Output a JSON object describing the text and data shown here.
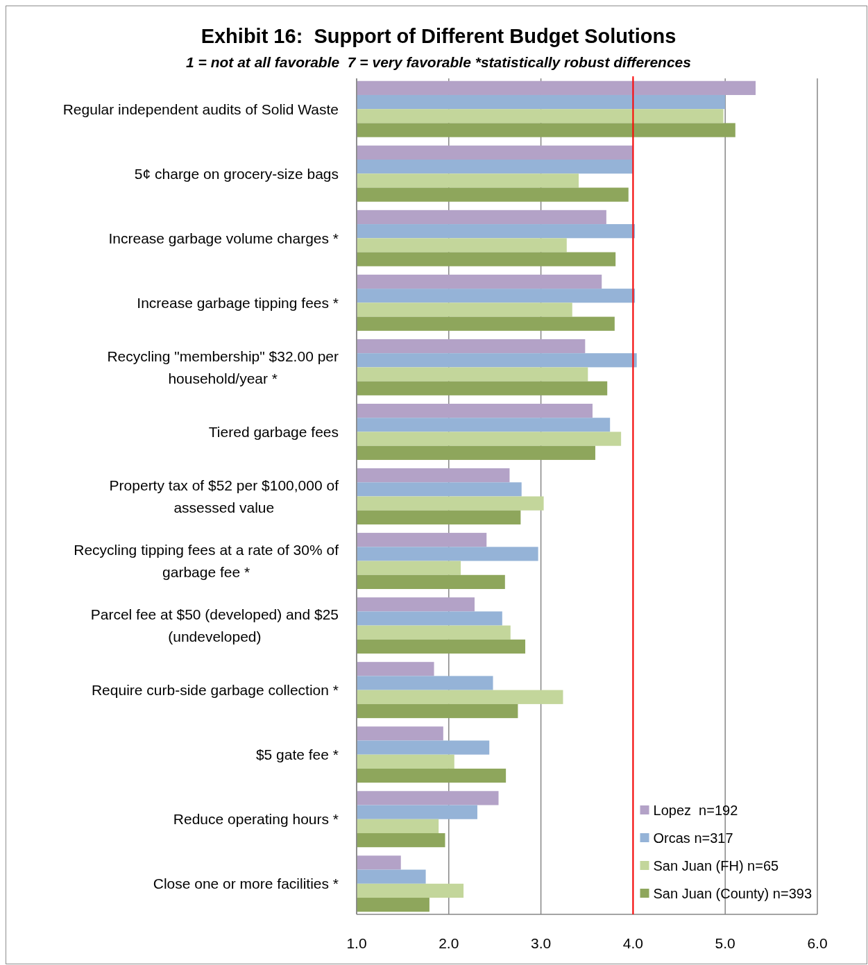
{
  "chart_data": {
    "type": "bar",
    "orientation": "horizontal",
    "title": "Exhibit 16:  Support of Different Budget Solutions",
    "subtitle": "1 = not at all favorable  7 = very favorable *statistically robust differences",
    "categories": [
      "Regular independent audits of Solid Waste",
      "5¢ charge on grocery-size bags",
      "Increase garbage volume charges *",
      "Increase garbage tipping fees *",
      "Recycling \"membership\" $32.00 per household/year *",
      "Tiered garbage fees",
      "Property tax of $52 per $100,000 of assessed value",
      "Recycling tipping fees at a rate of 30% of garbage fee *",
      "Parcel fee at $50 (developed) and $25 (undeveloped)",
      "Require curb-side garbage collection *",
      "$5 gate fee *",
      "Reduce operating hours *",
      "Close one or more facilities *"
    ],
    "series": [
      {
        "name": "Lopez  n=192",
        "color": "#b3a2c7",
        "values": [
          5.33,
          4.0,
          3.71,
          3.66,
          3.48,
          3.56,
          2.66,
          2.41,
          2.28,
          1.84,
          1.94,
          2.54,
          1.48
        ]
      },
      {
        "name": "Orcas n=317",
        "color": "#95b3d7",
        "values": [
          5.0,
          4.0,
          4.02,
          4.02,
          4.04,
          3.75,
          2.79,
          2.97,
          2.58,
          2.48,
          2.44,
          2.31,
          1.75
        ]
      },
      {
        "name": "San Juan (FH) n=65",
        "color": "#c3d69b",
        "values": [
          4.98,
          3.41,
          3.28,
          3.34,
          3.51,
          3.87,
          3.03,
          2.13,
          2.67,
          3.24,
          2.06,
          1.89,
          2.16
        ]
      },
      {
        "name": "San Juan (County) n=393",
        "color": "#8ea65c",
        "values": [
          5.11,
          3.95,
          3.81,
          3.8,
          3.72,
          3.59,
          2.78,
          2.61,
          2.83,
          2.75,
          2.62,
          1.96,
          1.79
        ]
      }
    ],
    "xlim": [
      1,
      6
    ],
    "xticks": [
      {
        "value": 1,
        "label": "1.0"
      },
      {
        "value": 2,
        "label": "2.0"
      },
      {
        "value": 3,
        "label": "3.0"
      },
      {
        "value": 4,
        "label": "4.0"
      },
      {
        "value": 5,
        "label": "5.0"
      },
      {
        "value": 6,
        "label": "6.0"
      }
    ],
    "grid": "x",
    "legend": "bottom right",
    "ref_lines": [
      {
        "axis": "x",
        "value": 4,
        "color": "#ff0000"
      }
    ]
  }
}
